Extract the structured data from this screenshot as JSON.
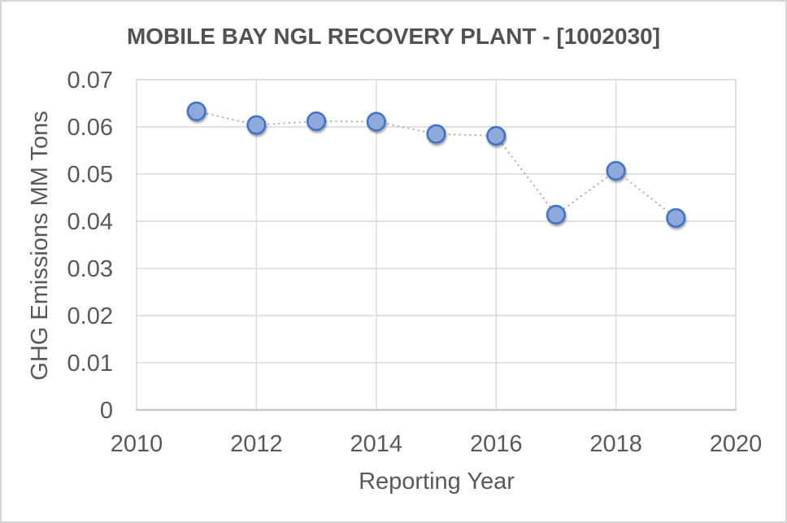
{
  "window": {
    "background": "#ffffff",
    "border_color": "#d5d5d5"
  },
  "chart_data": {
    "type": "scatter",
    "title": "MOBILE BAY NGL RECOVERY PLANT - [1002030]",
    "xlabel": "Reporting Year",
    "ylabel": "GHG Emissions MM Tons",
    "xlim": [
      2010,
      2020
    ],
    "ylim": [
      0,
      0.07
    ],
    "x_ticks": [
      2010,
      2012,
      2014,
      2016,
      2018,
      2020
    ],
    "x_tick_labels": [
      "2010",
      "2012",
      "2014",
      "2016",
      "2018",
      "2020"
    ],
    "y_ticks": [
      0,
      0.01,
      0.02,
      0.03,
      0.04,
      0.05,
      0.06,
      0.07
    ],
    "y_tick_labels": [
      "0",
      "0.01",
      "0.02",
      "0.03",
      "0.04",
      "0.05",
      "0.06",
      "0.07"
    ],
    "grid": true,
    "legend": false,
    "marker": "circle",
    "line_style": "dotted",
    "x": [
      2011,
      2012,
      2013,
      2014,
      2015,
      2016,
      2017,
      2018,
      2019
    ],
    "y": [
      0.0633,
      0.0604,
      0.0612,
      0.0611,
      0.0585,
      0.0581,
      0.0414,
      0.0507,
      0.0407
    ],
    "colors": {
      "marker_fill": "#8EAADB",
      "marker_stroke": "#4472C4",
      "connector_line": "#A8A8A8",
      "gridline": "#D9D9D9",
      "axis_line": "#C9C9C9",
      "tick_text": "#595959",
      "title_text": "#525252",
      "axis_title_text": "#595959"
    }
  }
}
